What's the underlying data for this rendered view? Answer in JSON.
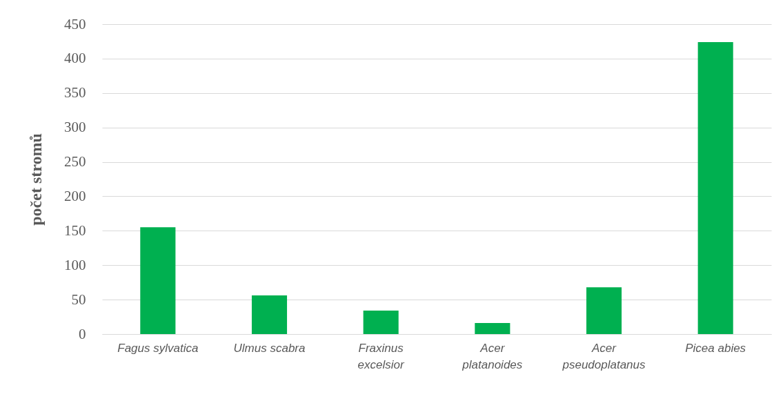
{
  "chart_data": {
    "type": "bar",
    "ylabel": "počet stromů",
    "categories": [
      "Fagus sylvatica",
      "Ulmus scabra",
      "Fraxinus excelsior",
      "Acer platanoides",
      "Acer pseudoplatanus",
      "Picea abies"
    ],
    "values": [
      155,
      56,
      34,
      16,
      68,
      424
    ],
    "color": "#00b050",
    "ylim": [
      0,
      450
    ],
    "yticks": [
      0,
      50,
      100,
      150,
      200,
      250,
      300,
      350,
      400,
      450
    ],
    "grid": "y"
  }
}
